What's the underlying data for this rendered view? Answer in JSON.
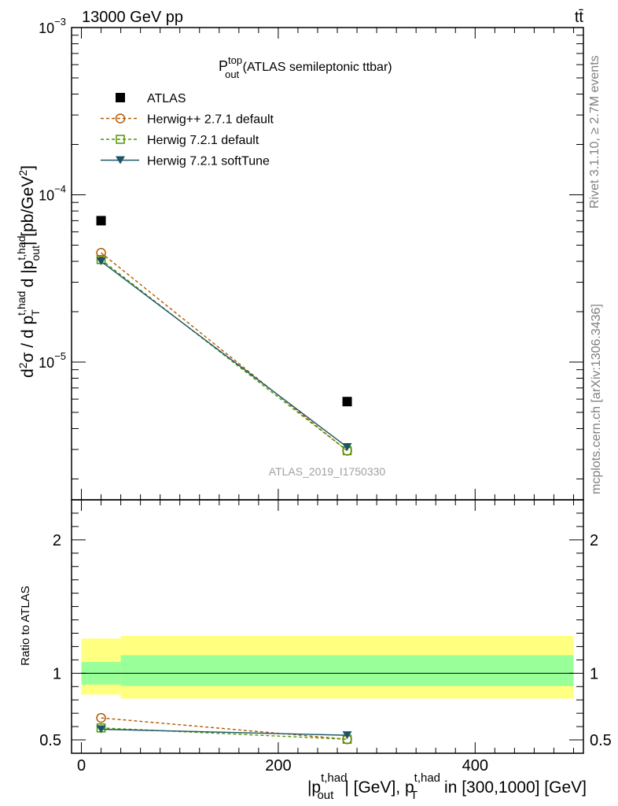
{
  "header": {
    "energy_label": "13000 GeV pp",
    "process_label": "tt̄"
  },
  "side_labels": {
    "rivet": "Rivet 3.1.10, ≥ 2.7M events",
    "mcplots": "mcplots.cern.ch [arXiv:1306.3436]"
  },
  "watermark": "ATLAS_2019_I1750330",
  "chart_data": [
    {
      "panel": "main",
      "type": "line",
      "title": {
        "base": "P",
        "sup": "top",
        "sub": "out",
        "rest": " (ATLAS semileptonic ttbar)"
      },
      "ylabel": "d²σ / d p_T^{t,had} d |p_out^{t,had}| [pb/GeV²]",
      "yscale": "log",
      "ylim": [
        1.5e-06,
        0.001
      ],
      "xlim": [
        -10,
        510
      ],
      "y_tick_labels": [
        {
          "value": 0.001,
          "base": "10",
          "exp": "−3"
        },
        {
          "value": 0.0001,
          "base": "10",
          "exp": "−4"
        },
        {
          "value": 1e-05,
          "base": "10",
          "exp": "−5"
        }
      ],
      "legend_position": "top-left",
      "series": [
        {
          "name": "ATLAS",
          "color": "#000000",
          "marker": "filled-square",
          "line": "none",
          "x": [
            20,
            270
          ],
          "y": [
            7e-05,
            5.8e-06
          ]
        },
        {
          "name": "Herwig++ 2.7.1 default",
          "color": "#b35900",
          "marker": "open-circle",
          "line": "dashed",
          "x": [
            20,
            270
          ],
          "y": [
            4.5e-05,
            2.95e-06
          ]
        },
        {
          "name": "Herwig 7.2.1 default",
          "color": "#4c9900",
          "marker": "open-square",
          "line": "dashed",
          "x": [
            20,
            270
          ],
          "y": [
            4.1e-05,
            2.95e-06
          ]
        },
        {
          "name": "Herwig 7.2.1 softTune",
          "color": "#1a5566",
          "marker": "filled-triangle-down",
          "line": "solid",
          "x": [
            20,
            270
          ],
          "y": [
            4e-05,
            3.1e-06
          ]
        }
      ]
    },
    {
      "panel": "ratio",
      "type": "line",
      "ylabel": "Ratio to ATLAS",
      "xlabel": {
        "p1": "|p",
        "sup1": "t,had",
        "sub1": "out",
        "p2": "| [GeV], p",
        "sup2": "t,had",
        "sub2": "T",
        "p3": " in [300,1000] [GeV]"
      },
      "ylim": [
        0.4,
        2.3
      ],
      "xlim": [
        -10,
        510
      ],
      "x_ticks": [
        0,
        200,
        400
      ],
      "x_tick_labels": [
        "0",
        "200",
        "400"
      ],
      "y_ticks": [
        0.5,
        1,
        2
      ],
      "y_tick_labels": [
        "0.5",
        "1",
        "2"
      ],
      "bands": [
        {
          "x0": 0,
          "x1": 40,
          "outer": [
            0.84,
            1.26
          ],
          "inner": [
            0.915,
            1.085
          ]
        },
        {
          "x0": 40,
          "x1": 500,
          "outer": [
            0.81,
            1.28
          ],
          "inner": [
            0.905,
            1.135
          ]
        }
      ],
      "series": [
        {
          "name": "Herwig++ 2.7.1 default",
          "color": "#b35900",
          "marker": "open-circle",
          "line": "dashed",
          "x": [
            20,
            270
          ],
          "y": [
            0.665,
            0.505
          ]
        },
        {
          "name": "Herwig 7.2.1 default",
          "color": "#4c9900",
          "marker": "open-square",
          "line": "dashed",
          "x": [
            20,
            270
          ],
          "y": [
            0.59,
            0.505
          ]
        },
        {
          "name": "Herwig 7.2.1 softTune",
          "color": "#1a5566",
          "marker": "filled-triangle-down",
          "line": "solid",
          "x": [
            20,
            270
          ],
          "y": [
            0.58,
            0.535
          ]
        }
      ]
    }
  ]
}
